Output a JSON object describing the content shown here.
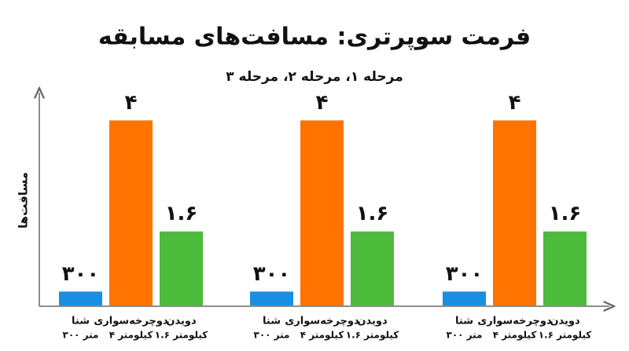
{
  "chart_data": {
    "type": "bar",
    "title": "فرمت سوپرتری: مسافت‌های مسابقه",
    "subtitle": "مرحله ۱، مرحله ۲، مرحله ۳",
    "y_label": "مسافت‌ها",
    "ylim": [
      0,
      4.6
    ],
    "series": [
      {
        "name": "شنا",
        "detail": "۳۰۰ متر",
        "color": "#1a8ee0",
        "values": [
          0.3,
          0.3,
          0.3
        ],
        "value_labels": [
          "۳۰۰",
          "۳۰۰",
          "۳۰۰"
        ]
      },
      {
        "name": "دوچرخه‌سواری",
        "detail": "۴ کیلومتر",
        "color": "#ff7300",
        "values": [
          4,
          4,
          4
        ],
        "value_labels": [
          "۴",
          "۴",
          "۴"
        ]
      },
      {
        "name": "دویدن",
        "detail": "۱.۶ کیلومتر",
        "color": "#4cbb3c",
        "values": [
          1.6,
          1.6,
          1.6
        ],
        "value_labels": [
          "۱.۶",
          "۱.۶",
          "۱.۶"
        ]
      }
    ]
  }
}
